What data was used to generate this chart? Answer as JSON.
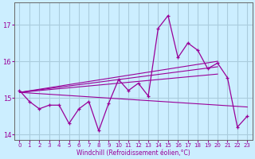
{
  "xlabel": "Windchill (Refroidissement éolien,°C)",
  "bg_color": "#cceeff",
  "grid_color": "#aaccdd",
  "line_color": "#990099",
  "x": [
    0,
    1,
    2,
    3,
    4,
    5,
    6,
    7,
    8,
    9,
    10,
    11,
    12,
    13,
    14,
    15,
    16,
    17,
    18,
    19,
    20,
    21,
    22,
    23
  ],
  "y_main": [
    15.2,
    14.9,
    14.7,
    14.8,
    14.8,
    14.3,
    14.7,
    14.9,
    14.1,
    14.85,
    15.5,
    15.2,
    15.4,
    15.05,
    16.9,
    17.25,
    16.1,
    16.5,
    16.3,
    15.8,
    15.95,
    15.55,
    14.2,
    14.5
  ],
  "trend_lines": [
    {
      "x0": 0,
      "y0": 15.15,
      "x1": 20,
      "y1": 16.0
    },
    {
      "x0": 0,
      "y0": 15.15,
      "x1": 20,
      "y1": 15.85
    },
    {
      "x0": 0,
      "y0": 15.15,
      "x1": 20,
      "y1": 15.65
    },
    {
      "x0": 0,
      "y0": 15.15,
      "x1": 23,
      "y1": 14.75
    }
  ],
  "ylim": [
    13.85,
    17.6
  ],
  "xlim": [
    -0.5,
    23.5
  ],
  "yticks": [
    14,
    15,
    16,
    17
  ],
  "xticks": [
    0,
    1,
    2,
    3,
    4,
    5,
    6,
    7,
    8,
    9,
    10,
    11,
    12,
    13,
    14,
    15,
    16,
    17,
    18,
    19,
    20,
    21,
    22,
    23
  ]
}
